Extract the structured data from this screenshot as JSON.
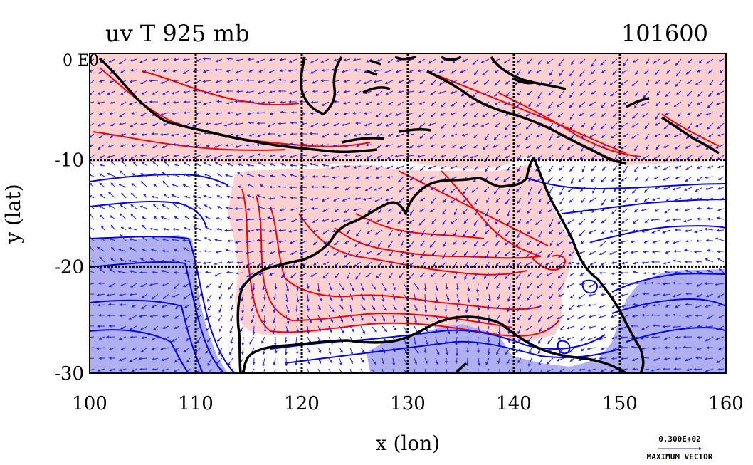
{
  "title_left": "uv T 925 mb",
  "title_right": "101600",
  "corner_label": "0 E0",
  "x_axis": {
    "label": "x (lon)",
    "ticks": [
      "100",
      "110",
      "120",
      "130",
      "140",
      "150",
      "160"
    ],
    "range": [
      100,
      160
    ]
  },
  "y_axis": {
    "label": "y (lat)",
    "ticks": [
      "-10",
      "-20",
      "-30"
    ],
    "range": [
      -30,
      0
    ]
  },
  "vector_legend": {
    "value": "0.300E+02",
    "label": "MAXIMUM VECTOR"
  },
  "colors": {
    "warm_fill": "#ffd0d0",
    "cold_fill": "#b0b0f0",
    "warm_contour": "#ff0000",
    "cold_contour": "#0000ff",
    "vectors": "#2020ff",
    "coast": "#000000",
    "grid": "#000000"
  },
  "chart_data": {
    "type": "map",
    "grid_lines_lon": [
      110,
      120,
      130,
      140,
      150
    ],
    "grid_lines_lat": [
      -10,
      -20
    ],
    "grid": true
  }
}
